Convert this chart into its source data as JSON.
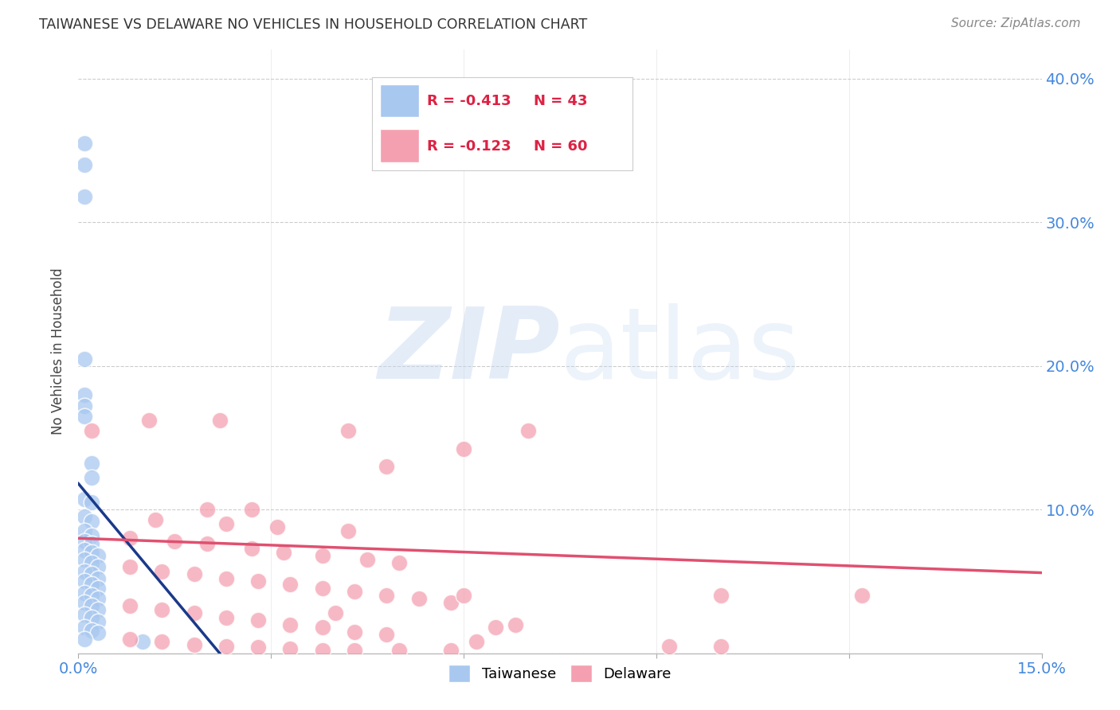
{
  "title": "TAIWANESE VS DELAWARE NO VEHICLES IN HOUSEHOLD CORRELATION CHART",
  "source": "Source: ZipAtlas.com",
  "ylabel": "No Vehicles in Household",
  "xlim": [
    0.0,
    0.15
  ],
  "ylim": [
    0.0,
    0.42
  ],
  "xtick_positions": [
    0.0,
    0.03,
    0.06,
    0.09,
    0.12,
    0.15
  ],
  "xticklabels": [
    "0.0%",
    "",
    "",
    "",
    "",
    "15.0%"
  ],
  "ytick_positions": [
    0.0,
    0.1,
    0.2,
    0.3,
    0.4
  ],
  "yticklabels_right": [
    "",
    "10.0%",
    "20.0%",
    "30.0%",
    "40.0%"
  ],
  "legend_r1": "-0.413",
  "legend_n1": "43",
  "legend_r2": "-0.123",
  "legend_n2": "60",
  "taiwanese_color": "#a8c8f0",
  "delaware_color": "#f4a0b0",
  "trendline_taiwanese_color": "#1a3a8a",
  "trendline_delaware_color": "#e05070",
  "watermark_zip": "ZIP",
  "watermark_atlas": "atlas",
  "background_color": "#ffffff",
  "grid_color": "#cccccc",
  "title_color": "#333333",
  "axis_label_color": "#4488dd",
  "legend_text_color": "#dd2244",
  "taiwanese_points": [
    [
      0.001,
      0.355
    ],
    [
      0.001,
      0.34
    ],
    [
      0.001,
      0.318
    ],
    [
      0.001,
      0.205
    ],
    [
      0.001,
      0.18
    ],
    [
      0.001,
      0.172
    ],
    [
      0.001,
      0.165
    ],
    [
      0.002,
      0.132
    ],
    [
      0.002,
      0.122
    ],
    [
      0.001,
      0.107
    ],
    [
      0.002,
      0.105
    ],
    [
      0.001,
      0.095
    ],
    [
      0.002,
      0.092
    ],
    [
      0.001,
      0.085
    ],
    [
      0.002,
      0.082
    ],
    [
      0.001,
      0.078
    ],
    [
      0.002,
      0.076
    ],
    [
      0.001,
      0.072
    ],
    [
      0.002,
      0.07
    ],
    [
      0.003,
      0.068
    ],
    [
      0.001,
      0.065
    ],
    [
      0.002,
      0.063
    ],
    [
      0.003,
      0.06
    ],
    [
      0.001,
      0.057
    ],
    [
      0.002,
      0.055
    ],
    [
      0.003,
      0.052
    ],
    [
      0.001,
      0.05
    ],
    [
      0.002,
      0.048
    ],
    [
      0.003,
      0.045
    ],
    [
      0.001,
      0.042
    ],
    [
      0.002,
      0.04
    ],
    [
      0.003,
      0.038
    ],
    [
      0.001,
      0.035
    ],
    [
      0.002,
      0.033
    ],
    [
      0.003,
      0.03
    ],
    [
      0.001,
      0.027
    ],
    [
      0.002,
      0.025
    ],
    [
      0.003,
      0.022
    ],
    [
      0.001,
      0.018
    ],
    [
      0.002,
      0.016
    ],
    [
      0.003,
      0.014
    ],
    [
      0.001,
      0.01
    ],
    [
      0.01,
      0.008
    ]
  ],
  "delaware_points": [
    [
      0.002,
      0.155
    ],
    [
      0.011,
      0.162
    ],
    [
      0.022,
      0.162
    ],
    [
      0.042,
      0.155
    ],
    [
      0.07,
      0.155
    ],
    [
      0.06,
      0.142
    ],
    [
      0.048,
      0.13
    ],
    [
      0.02,
      0.1
    ],
    [
      0.027,
      0.1
    ],
    [
      0.012,
      0.093
    ],
    [
      0.023,
      0.09
    ],
    [
      0.031,
      0.088
    ],
    [
      0.042,
      0.085
    ],
    [
      0.008,
      0.08
    ],
    [
      0.015,
      0.078
    ],
    [
      0.02,
      0.076
    ],
    [
      0.027,
      0.073
    ],
    [
      0.032,
      0.07
    ],
    [
      0.038,
      0.068
    ],
    [
      0.045,
      0.065
    ],
    [
      0.05,
      0.063
    ],
    [
      0.008,
      0.06
    ],
    [
      0.013,
      0.057
    ],
    [
      0.018,
      0.055
    ],
    [
      0.023,
      0.052
    ],
    [
      0.028,
      0.05
    ],
    [
      0.033,
      0.048
    ],
    [
      0.038,
      0.045
    ],
    [
      0.043,
      0.043
    ],
    [
      0.048,
      0.04
    ],
    [
      0.053,
      0.038
    ],
    [
      0.058,
      0.035
    ],
    [
      0.008,
      0.033
    ],
    [
      0.013,
      0.03
    ],
    [
      0.018,
      0.028
    ],
    [
      0.023,
      0.025
    ],
    [
      0.028,
      0.023
    ],
    [
      0.033,
      0.02
    ],
    [
      0.038,
      0.018
    ],
    [
      0.043,
      0.015
    ],
    [
      0.048,
      0.013
    ],
    [
      0.06,
      0.04
    ],
    [
      0.068,
      0.02
    ],
    [
      0.1,
      0.04
    ],
    [
      0.122,
      0.04
    ],
    [
      0.062,
      0.008
    ],
    [
      0.092,
      0.005
    ],
    [
      0.1,
      0.005
    ],
    [
      0.008,
      0.01
    ],
    [
      0.013,
      0.008
    ],
    [
      0.018,
      0.006
    ],
    [
      0.023,
      0.005
    ],
    [
      0.028,
      0.004
    ],
    [
      0.033,
      0.003
    ],
    [
      0.038,
      0.002
    ],
    [
      0.043,
      0.002
    ],
    [
      0.05,
      0.002
    ],
    [
      0.058,
      0.002
    ],
    [
      0.065,
      0.018
    ],
    [
      0.04,
      0.028
    ]
  ],
  "tw_trendline": [
    [
      0.0,
      0.118
    ],
    [
      0.022,
      0.0
    ]
  ],
  "de_trendline": [
    [
      0.0,
      0.08
    ],
    [
      0.15,
      0.056
    ]
  ]
}
